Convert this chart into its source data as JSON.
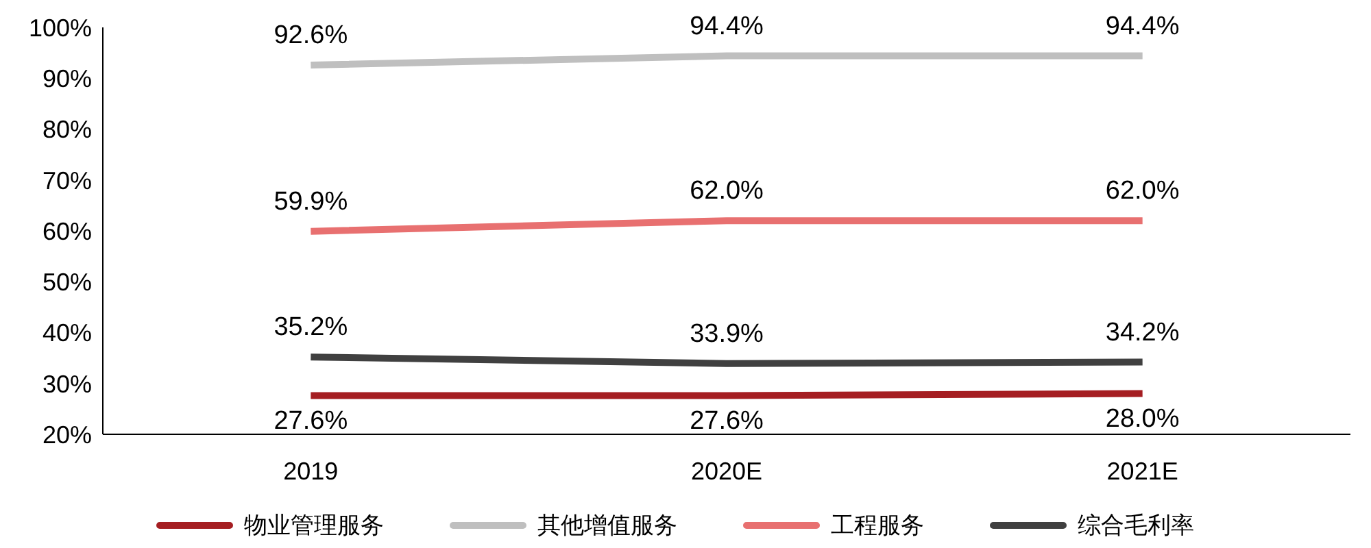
{
  "chart_data": {
    "type": "line",
    "categories": [
      "2019",
      "2020E",
      "2021E"
    ],
    "series": [
      {
        "name": "物业管理服务",
        "color": "#a51e22",
        "values": [
          27.6,
          27.6,
          28.0
        ],
        "value_labels": [
          "27.6%",
          "27.6%",
          "28.0%"
        ]
      },
      {
        "name": "其他增值服务",
        "color": "#bfbfbf",
        "values": [
          92.6,
          94.4,
          94.4
        ],
        "value_labels": [
          "92.6%",
          "94.4%",
          "94.4%"
        ]
      },
      {
        "name": "工程服务",
        "color": "#e87070",
        "values": [
          59.9,
          62.0,
          62.0
        ],
        "value_labels": [
          "59.9%",
          "62.0%",
          "62.0%"
        ]
      },
      {
        "name": "综合毛利率",
        "color": "#404040",
        "values": [
          35.2,
          33.9,
          34.2
        ],
        "value_labels": [
          "35.2%",
          "33.9%",
          "34.2%"
        ]
      }
    ],
    "ylim": [
      20,
      100
    ],
    "yticks": [
      {
        "value": 20,
        "label": "20%"
      },
      {
        "value": 30,
        "label": "30%"
      },
      {
        "value": 40,
        "label": "40%"
      },
      {
        "value": 50,
        "label": "50%"
      },
      {
        "value": 60,
        "label": "60%"
      },
      {
        "value": 70,
        "label": "70%"
      },
      {
        "value": 80,
        "label": "80%"
      },
      {
        "value": 90,
        "label": "90%"
      },
      {
        "value": 100,
        "label": "100%"
      }
    ],
    "grid": false,
    "legend": "bottom",
    "marker": "none",
    "line_style": "solid"
  }
}
